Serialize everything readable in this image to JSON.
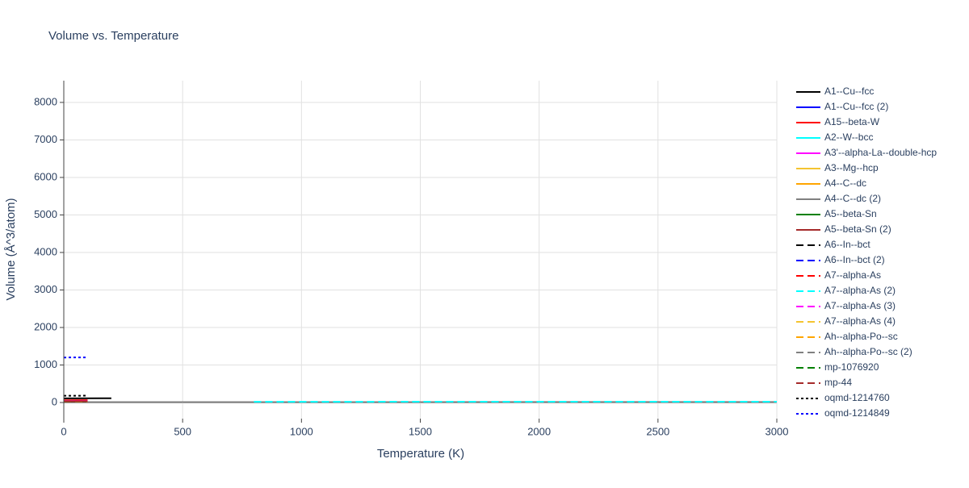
{
  "chart_data": {
    "type": "line",
    "title": "Volume vs. Temperature",
    "x_label": "Temperature (K)",
    "y_label": "Volume (Å^3/atom)",
    "xlim": [
      0,
      3000
    ],
    "ylim": [
      -430,
      8580
    ],
    "xticks": [
      0,
      500,
      1000,
      1500,
      2000,
      2500,
      3000
    ],
    "yticks": [
      0,
      1000,
      2000,
      3000,
      4000,
      5000,
      6000,
      7000,
      8000
    ],
    "grid": true,
    "legend": "right",
    "series": [
      {
        "name": "A1--Cu--fcc",
        "color": "#000000",
        "dash": "solid",
        "x": [
          0,
          200
        ],
        "values": [
          110,
          112
        ]
      },
      {
        "name": "A1--Cu--fcc (2)",
        "color": "#0000ff",
        "dash": "solid",
        "x": [
          0,
          100
        ],
        "values": [
          48,
          50
        ]
      },
      {
        "name": "A15--beta-W",
        "color": "#ff0000",
        "dash": "solid",
        "x": [
          0,
          100
        ],
        "values": [
          60,
          62
        ]
      },
      {
        "name": "A2--W--bcc",
        "color": "#00ffff",
        "dash": "solid",
        "x": [
          0,
          100
        ],
        "values": [
          16,
          17
        ]
      },
      {
        "name": "A3'--alpha-La--double-hcp",
        "color": "#ff00ff",
        "dash": "solid",
        "x": [
          0,
          100
        ],
        "values": [
          37,
          38
        ]
      },
      {
        "name": "A3--Mg--hcp",
        "color": "#f4c430",
        "dash": "solid",
        "x": [
          0,
          100
        ],
        "values": [
          23,
          24
        ]
      },
      {
        "name": "A4--C--dc",
        "color": "#ffa500",
        "dash": "solid",
        "x": [
          0,
          100
        ],
        "values": [
          11,
          12
        ]
      },
      {
        "name": "A4--C--dc (2)",
        "color": "#808080",
        "dash": "solid",
        "x": [
          0,
          3000
        ],
        "values": [
          11,
          13
        ]
      },
      {
        "name": "A5--beta-Sn",
        "color": "#008000",
        "dash": "solid",
        "x": [
          0,
          100
        ],
        "values": [
          27,
          28
        ]
      },
      {
        "name": "A5--beta-Sn (2)",
        "color": "#a52a2a",
        "dash": "solid",
        "x": [
          0,
          100
        ],
        "values": [
          27,
          29
        ]
      },
      {
        "name": "A6--In--bct",
        "color": "#000000",
        "dash": "dash",
        "x": [
          0,
          100
        ],
        "values": [
          27,
          28
        ]
      },
      {
        "name": "A6--In--bct (2)",
        "color": "#0000ff",
        "dash": "dash",
        "x": [
          0,
          100
        ],
        "values": [
          25,
          26
        ]
      },
      {
        "name": "A7--alpha-As",
        "color": "#ff0000",
        "dash": "dash",
        "x": [
          0,
          100
        ],
        "values": [
          22,
          23
        ]
      },
      {
        "name": "A7--alpha-As (2)",
        "color": "#00ffff",
        "dash": "dash",
        "x": [
          800,
          3000
        ],
        "values": [
          20,
          21
        ]
      },
      {
        "name": "A7--alpha-As (3)",
        "color": "#ff00ff",
        "dash": "dash",
        "x": [
          0,
          100
        ],
        "values": [
          21,
          22
        ]
      },
      {
        "name": "A7--alpha-As (4)",
        "color": "#f4c430",
        "dash": "dash",
        "x": [
          0,
          100
        ],
        "values": [
          21,
          23
        ]
      },
      {
        "name": "Ah--alpha-Po--sc",
        "color": "#ffa500",
        "dash": "dash",
        "x": [
          0,
          100
        ],
        "values": [
          30,
          31
        ]
      },
      {
        "name": "Ah--alpha-Po--sc (2)",
        "color": "#808080",
        "dash": "dash",
        "x": [
          0,
          100
        ],
        "values": [
          30,
          32
        ]
      },
      {
        "name": "mp-1076920",
        "color": "#008000",
        "dash": "dash",
        "x": [
          0,
          100
        ],
        "values": [
          27,
          30
        ]
      },
      {
        "name": "mp-44",
        "color": "#a52a2a",
        "dash": "dash",
        "x": [
          0,
          100
        ],
        "values": [
          30,
          33
        ]
      },
      {
        "name": "oqmd-1214760",
        "color": "#000000",
        "dash": "dot",
        "x": [
          0,
          100
        ],
        "values": [
          180,
          182
        ]
      },
      {
        "name": "oqmd-1214849",
        "color": "#0000ff",
        "dash": "dot",
        "x": [
          0,
          100
        ],
        "values": [
          1200,
          1202
        ]
      }
    ]
  }
}
